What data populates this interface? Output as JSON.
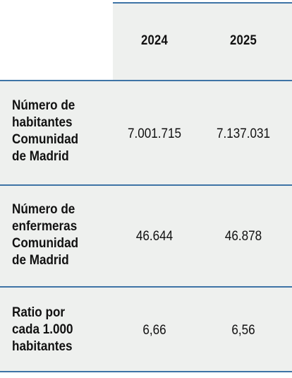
{
  "table": {
    "columns": [
      "2024",
      "2025"
    ],
    "rows": [
      {
        "label_lines": [
          "Número de",
          "habitantes",
          "Comunidad",
          "de Madrid"
        ],
        "values": [
          "7.001.715",
          "7.137.031"
        ]
      },
      {
        "label_lines": [
          "Número de",
          "enfermeras",
          "Comunidad",
          "de Madrid"
        ],
        "values": [
          "46.644",
          "46.878"
        ]
      },
      {
        "label_lines": [
          "Ratio por",
          "cada 1.000",
          "habitantes"
        ],
        "values": [
          "6,66",
          "6,56"
        ]
      }
    ]
  },
  "colors": {
    "accent_line": "#3e74a6",
    "cell_background": "#eef0ee"
  }
}
